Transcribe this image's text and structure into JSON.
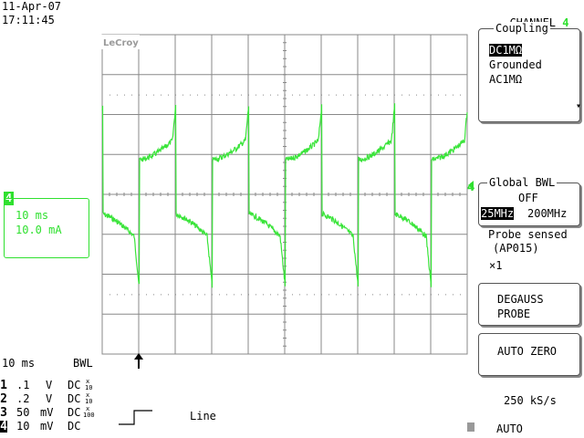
{
  "header": {
    "date": "11-Apr-07",
    "time": "17:11:45",
    "channel_label": "CHANNEL",
    "channel_number": "4"
  },
  "display": {
    "brand": "LeCroy",
    "trace_color": "#3ae43a",
    "ground_marker": "4"
  },
  "ch4_box": {
    "marker": "4",
    "timebase": "10 ms",
    "scale": "10.0 mA"
  },
  "coupling_menu": {
    "title": "Coupling",
    "options": [
      "DC1MΩ",
      "Grounded",
      "AC1MΩ"
    ],
    "selected_index": 0
  },
  "bwl_menu": {
    "title": "Global BWL",
    "state": "OFF",
    "options": [
      "25MHz",
      "200MHz"
    ],
    "selected_index": 0,
    "probe_line1": "Probe sensed",
    "probe_line2": "(AP015)",
    "probe_line3": "×1"
  },
  "buttons": {
    "degauss_line1": "DEGAUSS",
    "degauss_line2": "PROBE",
    "auto_zero": "AUTO ZERO"
  },
  "status": {
    "timebase": "10 ms",
    "bwl": "BWL",
    "sample_rate": "250 kS/s",
    "trigger_mode": "AUTO",
    "trigger_source": "Line"
  },
  "channels": [
    {
      "num": "1",
      "vdiv": ".1",
      "unit": "V",
      "coupling": "DC",
      "probe_top": "x",
      "probe_bottom": "10"
    },
    {
      "num": "2",
      "vdiv": ".2",
      "unit": "V",
      "coupling": "DC",
      "probe_top": "x",
      "probe_bottom": "10"
    },
    {
      "num": "3",
      "vdiv": "50",
      "unit": "mV",
      "coupling": "DC",
      "probe_top": "x",
      "probe_bottom": "100"
    },
    {
      "num": "4",
      "vdiv": "10",
      "unit": "mV",
      "coupling": "DC",
      "probe_top": "",
      "probe_bottom": ""
    }
  ]
}
